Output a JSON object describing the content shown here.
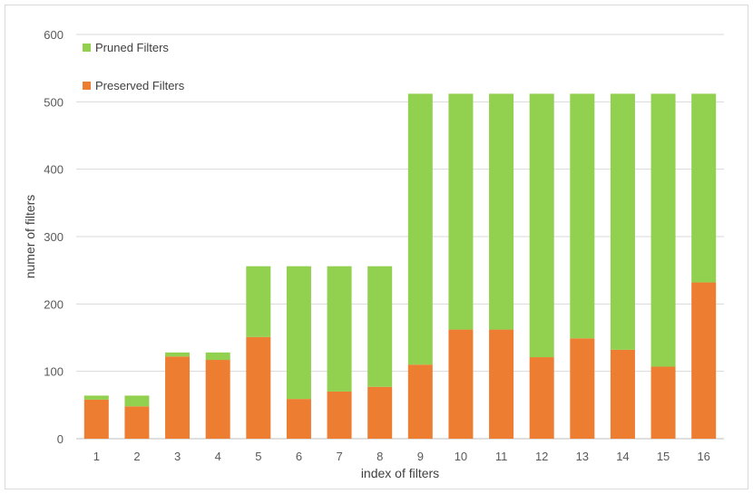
{
  "chart_data": {
    "type": "bar",
    "stacked": true,
    "categories": [
      "1",
      "2",
      "3",
      "4",
      "5",
      "6",
      "7",
      "8",
      "9",
      "10",
      "11",
      "12",
      "13",
      "14",
      "15",
      "16"
    ],
    "series": [
      {
        "name": "Preserved Filters",
        "color": "#ED7D31",
        "values": [
          58,
          48,
          122,
          117,
          151,
          59,
          70,
          77,
          110,
          162,
          162,
          121,
          149,
          132,
          107,
          232
        ]
      },
      {
        "name": "Pruned Filters",
        "color": "#92D050",
        "values": [
          6,
          16,
          6,
          11,
          105,
          197,
          186,
          179,
          402,
          350,
          350,
          391,
          363,
          380,
          405,
          280
        ]
      }
    ],
    "title": "",
    "xlabel": "index of filters",
    "ylabel": "numer of filters",
    "ylim": [
      0,
      600
    ],
    "yticks": [
      0,
      100,
      200,
      300,
      400,
      500,
      600
    ],
    "grid": true,
    "legend_position": "top-left"
  }
}
